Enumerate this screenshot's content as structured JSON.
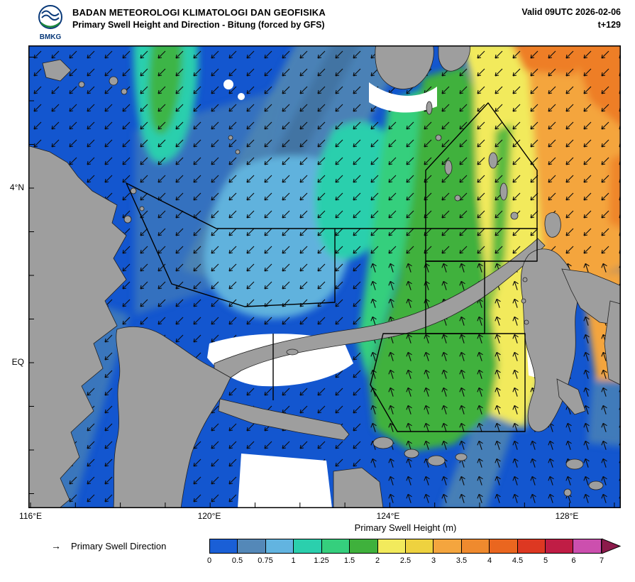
{
  "header": {
    "logo_label": "BMKG",
    "agency": "BADAN METEOROLOGI KLIMATOLOGI DAN GEOFISIKA",
    "product": "Primary Swell Height and Direction - Bitung (forced by GFS)",
    "valid_time": "Valid 09UTC 2026-02-06",
    "forecast_step": "t+129"
  },
  "map": {
    "lat_labels": [
      "4°N",
      "EQ"
    ],
    "lon_labels": [
      "116°E",
      "120°E",
      "124°E",
      "128°E"
    ]
  },
  "legend": {
    "title": "Primary Swell Height (m)",
    "direction_symbol": "→",
    "direction_label": "Primary Swell Direction",
    "ticks": [
      "0",
      "0.5",
      "0.75",
      "1",
      "1.25",
      "1.5",
      "2",
      "2.5",
      "3",
      "3.5",
      "4",
      "4.5",
      "5",
      "6",
      "7"
    ],
    "colors": [
      "#1a5fd6",
      "#5488b8",
      "#62b4e0",
      "#2bcfad",
      "#35cf7d",
      "#3fb13c",
      "#f2ea5c",
      "#eed23f",
      "#f4a53e",
      "#ef8a2e",
      "#ea661f",
      "#dd3822",
      "#c01d45",
      "#cc4fae"
    ],
    "arrow_color": "#8c1a4b"
  }
}
